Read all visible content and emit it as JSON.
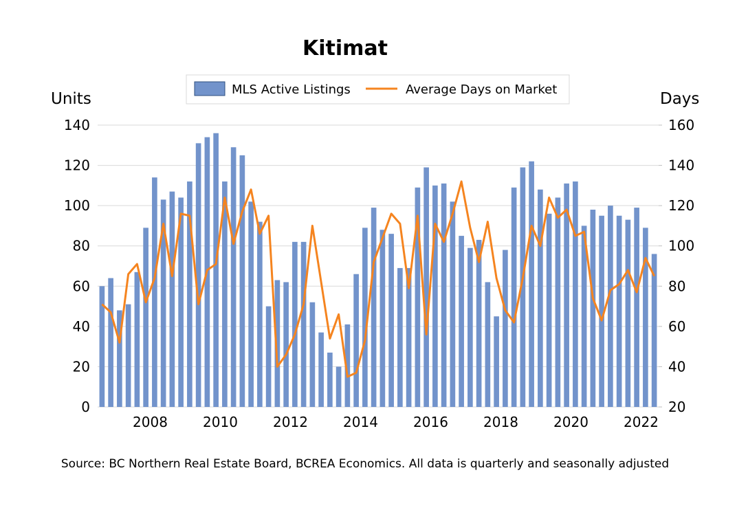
{
  "chart_data": {
    "type": "bar+line",
    "title": "Kitimat",
    "left_axis_label": "Units",
    "right_axis_label": "Days",
    "left_ylim": [
      0,
      140
    ],
    "right_ylim": [
      20,
      160
    ],
    "left_ticks": [
      "0",
      "20",
      "40",
      "60",
      "80",
      "100",
      "120",
      "140"
    ],
    "right_ticks": [
      "20",
      "40",
      "60",
      "80",
      "100",
      "120",
      "140",
      "160"
    ],
    "x_tick_labels": [
      "2008",
      "2010",
      "2012",
      "2014",
      "2016",
      "2018",
      "2020",
      "2022"
    ],
    "x_start_year": 2006.5,
    "x_end_year": 2022.5,
    "grid": true,
    "legend_position": "top",
    "source": "Source: BC Northern Real Estate Board, BCREA Economics. All data is quarterly and seasonally adjusted",
    "series": [
      {
        "name": "MLS Active Listings",
        "kind": "bar",
        "axis": "left",
        "color": "#7293CB",
        "values": [
          60,
          64,
          48,
          51,
          67,
          89,
          114,
          103,
          107,
          104,
          112,
          131,
          134,
          136,
          112,
          129,
          125,
          102,
          92,
          50,
          63,
          62,
          82,
          82,
          52,
          37,
          27,
          20,
          41,
          66,
          89,
          99,
          88,
          86,
          69,
          69,
          109,
          119,
          110,
          111,
          102,
          85,
          79,
          83,
          62,
          45,
          78,
          109,
          119,
          122,
          108,
          96,
          104,
          111,
          112,
          90,
          98,
          95,
          100,
          95,
          93,
          99,
          89,
          76
        ]
      },
      {
        "name": "Average Days on Market",
        "kind": "line",
        "axis": "right",
        "color": "#F5841F",
        "values": [
          71,
          67,
          52,
          86,
          91,
          72,
          84,
          111,
          85,
          116,
          115,
          71,
          88,
          91,
          124,
          101,
          117,
          128,
          106,
          115,
          40,
          46,
          56,
          71,
          110,
          82,
          54,
          66,
          35,
          37,
          53,
          92,
          104,
          116,
          111,
          79,
          115,
          56,
          111,
          102,
          116,
          132,
          109,
          92,
          112,
          84,
          68,
          62,
          84,
          110,
          100,
          124,
          114,
          118,
          105,
          107,
          74,
          63,
          78,
          81,
          88,
          77,
          94,
          85
        ]
      }
    ]
  }
}
